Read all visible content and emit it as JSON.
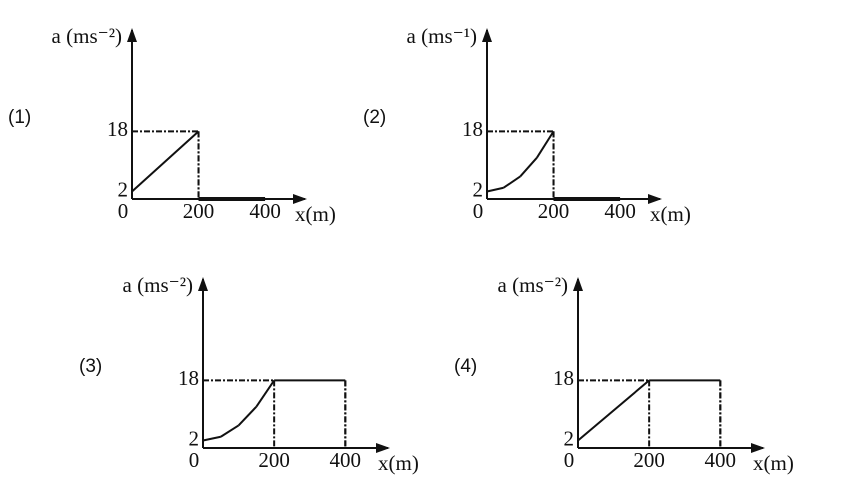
{
  "chart_data": [
    {
      "type": "line",
      "label": "(1)",
      "y_label": "a (ms⁻²)",
      "x_label": "x(m)",
      "x": [
        0,
        200,
        200,
        400
      ],
      "values": [
        2,
        18,
        0,
        0
      ],
      "xlim": [
        0,
        520
      ],
      "ylim": [
        0,
        45
      ],
      "xticks": [
        0,
        200,
        400
      ],
      "yticks": [
        2,
        18
      ]
    },
    {
      "type": "line",
      "label": "(2)",
      "y_label": "a (ms⁻¹)",
      "x_label": "x(m)",
      "x": [
        0,
        50,
        100,
        150,
        200,
        200,
        400
      ],
      "values": [
        2,
        3,
        6,
        11,
        18,
        0,
        0
      ],
      "xlim": [
        0,
        520
      ],
      "ylim": [
        0,
        45
      ],
      "xticks": [
        0,
        200,
        400
      ],
      "yticks": [
        2,
        18
      ]
    },
    {
      "type": "line",
      "label": "(3)",
      "y_label": "a (ms⁻²)",
      "x_label": "x(m)",
      "x": [
        0,
        50,
        100,
        150,
        200,
        400,
        400
      ],
      "values": [
        2,
        3,
        6,
        11,
        18,
        18,
        0
      ],
      "xlim": [
        0,
        520
      ],
      "ylim": [
        0,
        45
      ],
      "xticks": [
        0,
        200,
        400
      ],
      "yticks": [
        2,
        18
      ]
    },
    {
      "type": "line",
      "label": "(4)",
      "y_label": "a (ms⁻²)",
      "x_label": "x(m)",
      "x": [
        0,
        200,
        400,
        400
      ],
      "values": [
        2,
        18,
        18,
        0
      ],
      "xlim": [
        0,
        520
      ],
      "ylim": [
        0,
        45
      ],
      "xticks": [
        0,
        200,
        400
      ],
      "yticks": [
        2,
        18
      ]
    }
  ]
}
